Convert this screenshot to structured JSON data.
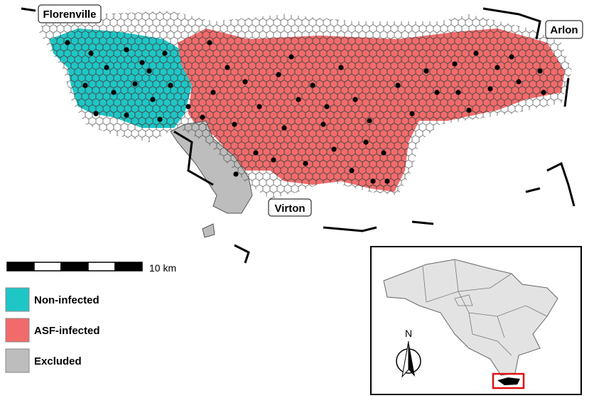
{
  "towns": {
    "florenville": "Florenville",
    "arlon": "Arlon",
    "virton": "Virton"
  },
  "scale_bar": {
    "label": "10 km"
  },
  "legend": [
    {
      "label": "Non-infected",
      "color": "#1fc6c6"
    },
    {
      "label": "ASF-infected",
      "color": "#f26b6b"
    },
    {
      "label": "Excluded",
      "color": "#bdbdbd"
    }
  ],
  "inset": {
    "north_label": "N"
  }
}
